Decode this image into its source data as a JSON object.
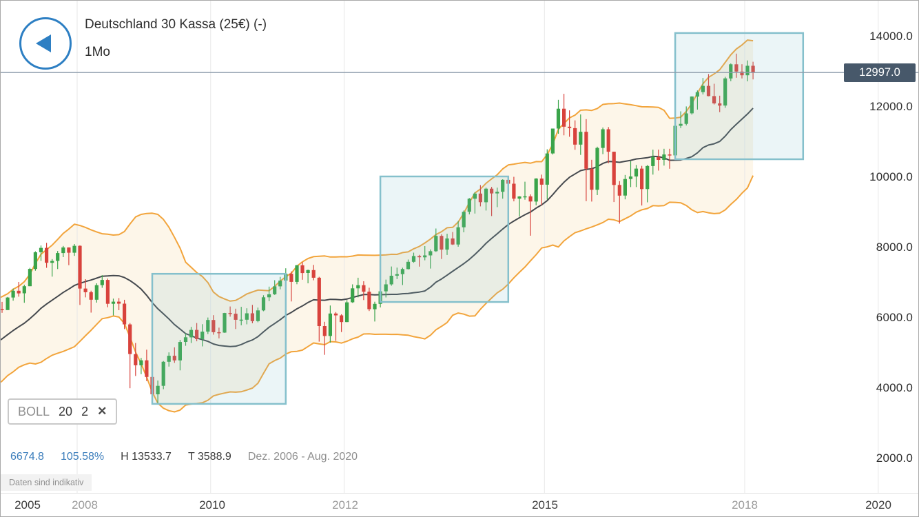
{
  "header": {
    "title": "Deutschland 30 Kassa (25€) (-)",
    "timeframe": "1Mo"
  },
  "icons": {
    "close": "✕",
    "back": "left-arrow"
  },
  "stats": {
    "change_points": "6674.8",
    "change_percent": "105.58%",
    "high": "H 13533.7",
    "low": "T 3588.9",
    "range": "Dez. 2006 - Aug. 2020"
  },
  "disclaimer": "Daten sind indikativ",
  "colors": {
    "accent_blue": "#2d7fc3",
    "stat_blue": "#3b7dbb",
    "up": "#3aa44a",
    "down": "#d8423c",
    "band_line": "#f2a43b",
    "band_fill": "#fdf6e9",
    "mid_line": "#45494e",
    "box_stroke": "#85c0cc",
    "box_fill": "rgba(133,192,204,0.16)",
    "price_line": "#8d9cab",
    "badge_bg": "#47586a",
    "grid": "#e7e7e7",
    "text_dark": "#3c3c3c",
    "text_gray": "#9b9b9b"
  },
  "chart_data": {
    "type": "candlestick",
    "title": "Deutschland 30 Kassa (25€) (-)",
    "timeframe": "1Mo",
    "x_ticks": [
      "2005",
      "2008",
      "2010",
      "2012",
      "2015",
      "2018",
      "2020"
    ],
    "y_ticks": [
      "14000.0",
      "12000.0",
      "10000.0",
      "8000.0",
      "6000.0",
      "4000.0",
      "2000.0"
    ],
    "y_range": [
      2000,
      14000
    ],
    "current_price": 12997.0,
    "current_price_label": "12997.0",
    "indicator": {
      "name": "BOLL",
      "period": 20,
      "stddev": 2
    },
    "annotations": [
      {
        "type": "rect",
        "from": "2009-02",
        "to": "2011-02",
        "price_top": 7270,
        "price_bottom": 3570
      },
      {
        "type": "rect",
        "from": "2012-07",
        "to": "2014-06",
        "price_top": 10040,
        "price_bottom": 6470
      },
      {
        "type": "rect",
        "from": "2016-12",
        "to": "2018-11",
        "price_top": 14120,
        "price_bottom": 10530
      }
    ],
    "candles": [
      [
        "2005-01",
        4256,
        4270,
        4157,
        4254
      ],
      [
        "2005-02",
        4254,
        4412,
        4203,
        4350
      ],
      [
        "2005-03",
        4350,
        4435,
        4292,
        4348
      ],
      [
        "2005-04",
        4348,
        4380,
        4157,
        4184
      ],
      [
        "2005-05",
        4184,
        4478,
        4180,
        4460
      ],
      [
        "2005-06",
        4460,
        4632,
        4444,
        4586
      ],
      [
        "2005-07",
        4586,
        4897,
        4572,
        4886
      ],
      [
        "2005-08",
        4886,
        5004,
        4762,
        4830
      ],
      [
        "2005-09",
        4830,
        5064,
        4815,
        5044
      ],
      [
        "2005-10",
        5044,
        5138,
        4762,
        4929
      ],
      [
        "2005-11",
        4929,
        5226,
        4868,
        5193
      ],
      [
        "2005-12",
        5193,
        5458,
        5166,
        5408
      ],
      [
        "2006-01",
        5408,
        5686,
        5352,
        5674
      ],
      [
        "2006-02",
        5674,
        5888,
        5582,
        5796
      ],
      [
        "2006-03",
        5796,
        6001,
        5689,
        5970
      ],
      [
        "2006-04",
        5970,
        6141,
        5871,
        6009
      ],
      [
        "2006-05",
        6009,
        6162,
        5618,
        5692
      ],
      [
        "2006-06",
        5692,
        5730,
        5243,
        5683
      ],
      [
        "2006-07",
        5683,
        5743,
        5405,
        5682
      ],
      [
        "2006-08",
        5682,
        5938,
        5603,
        5859
      ],
      [
        "2006-09",
        5859,
        6090,
        5753,
        6004
      ],
      [
        "2006-10",
        6004,
        6321,
        5950,
        6269
      ],
      [
        "2006-11",
        6269,
        6472,
        6161,
        6241
      ],
      [
        "2006-12",
        6241,
        6611,
        6241,
        6597
      ],
      [
        "2007-01",
        6597,
        6850,
        6505,
        6789
      ],
      [
        "2007-02",
        6789,
        7040,
        6620,
        6715
      ],
      [
        "2007-03",
        6715,
        6960,
        6448,
        6917
      ],
      [
        "2007-04",
        6917,
        7440,
        6917,
        7409
      ],
      [
        "2007-05",
        7409,
        7910,
        7358,
        7883
      ],
      [
        "2007-06",
        7883,
        8076,
        7638,
        8007
      ],
      [
        "2007-07",
        8007,
        8151,
        7441,
        7584
      ],
      [
        "2007-08",
        7584,
        7690,
        7190,
        7638
      ],
      [
        "2007-09",
        7638,
        7920,
        7405,
        7861
      ],
      [
        "2007-10",
        7861,
        8063,
        7745,
        8019
      ],
      [
        "2007-11",
        8019,
        8024,
        7515,
        7870
      ],
      [
        "2007-12",
        7870,
        8117,
        7780,
        8067
      ],
      [
        "2008-01",
        8067,
        8081,
        6384,
        6851
      ],
      [
        "2008-02",
        6851,
        7117,
        6600,
        6748
      ],
      [
        "2008-03",
        6748,
        6790,
        6167,
        6535
      ],
      [
        "2008-04",
        6535,
        7000,
        6450,
        6948
      ],
      [
        "2008-05",
        6948,
        7231,
        6873,
        7096
      ],
      [
        "2008-06",
        7096,
        7135,
        6319,
        6418
      ],
      [
        "2008-07",
        6418,
        6564,
        6089,
        6479
      ],
      [
        "2008-08",
        6479,
        6581,
        6236,
        6422
      ],
      [
        "2008-09",
        6422,
        6531,
        5698,
        5831
      ],
      [
        "2008-10",
        5831,
        5871,
        4015,
        4987
      ],
      [
        "2008-11",
        4987,
        5302,
        4364,
        4669
      ],
      [
        "2008-12",
        4669,
        4879,
        4416,
        4810
      ],
      [
        "2009-01",
        4810,
        5111,
        4217,
        4338
      ],
      [
        "2009-02",
        4338,
        4560,
        3822,
        3843
      ],
      [
        "2009-03",
        3843,
        4236,
        3588.9,
        4085
      ],
      [
        "2009-04",
        4085,
        4790,
        3989,
        4769
      ],
      [
        "2009-05",
        4769,
        5035,
        4631,
        4940
      ],
      [
        "2009-06",
        4940,
        5178,
        4738,
        4809
      ],
      [
        "2009-07",
        4809,
        5390,
        4524,
        5332
      ],
      [
        "2009-08",
        5332,
        5576,
        5223,
        5464
      ],
      [
        "2009-09",
        5464,
        5761,
        5301,
        5675
      ],
      [
        "2009-10",
        5675,
        5870,
        5351,
        5414
      ],
      [
        "2009-11",
        5414,
        5838,
        5205,
        5626
      ],
      [
        "2009-12",
        5626,
        6027,
        5556,
        5957
      ],
      [
        "2010-01",
        5957,
        6094,
        5540,
        5609
      ],
      [
        "2010-02",
        5609,
        5739,
        5433,
        5598
      ],
      [
        "2010-03",
        5598,
        6160,
        5590,
        6154
      ],
      [
        "2010-04",
        6154,
        6341,
        6050,
        6136
      ],
      [
        "2010-05",
        6136,
        6278,
        5700,
        5964
      ],
      [
        "2010-06",
        5964,
        6331,
        5806,
        5966
      ],
      [
        "2010-07",
        5966,
        6291,
        5834,
        6148
      ],
      [
        "2010-08",
        6148,
        6387,
        5862,
        5925
      ],
      [
        "2010-09",
        5925,
        6309,
        5893,
        6229
      ],
      [
        "2010-10",
        6229,
        6660,
        6206,
        6601
      ],
      [
        "2010-11",
        6601,
        6905,
        6492,
        6688
      ],
      [
        "2010-12",
        6688,
        7088,
        6671,
        6914
      ],
      [
        "2011-01",
        6914,
        7185,
        6830,
        7077
      ],
      [
        "2011-02",
        7077,
        7427,
        7051,
        7272
      ],
      [
        "2011-03",
        7272,
        7340,
        6484,
        7041
      ],
      [
        "2011-04",
        7041,
        7519,
        6974,
        7514
      ],
      [
        "2011-05",
        7514,
        7601,
        7102,
        7293
      ],
      [
        "2011-06",
        7293,
        7390,
        7000,
        7376
      ],
      [
        "2011-07",
        7376,
        7524,
        7087,
        7159
      ],
      [
        "2011-08",
        7159,
        7184,
        5341,
        5785
      ],
      [
        "2011-09",
        5785,
        5906,
        4966,
        5502
      ],
      [
        "2011-10",
        5502,
        6368,
        5311,
        6141
      ],
      [
        "2011-11",
        6141,
        6182,
        5362,
        6088
      ],
      [
        "2011-12",
        6088,
        6120,
        5613,
        5898
      ],
      [
        "2012-01",
        5898,
        6523,
        5896,
        6459
      ],
      [
        "2012-02",
        6459,
        6971,
        6444,
        6856
      ],
      [
        "2012-03",
        6856,
        7158,
        6600,
        6947
      ],
      [
        "2012-04",
        6947,
        7058,
        6523,
        6761
      ],
      [
        "2012-05",
        6761,
        6875,
        6212,
        6264
      ],
      [
        "2012-06",
        6264,
        6477,
        5914,
        6416
      ],
      [
        "2012-07",
        6416,
        6813,
        6313,
        6772
      ],
      [
        "2012-08",
        6772,
        7106,
        6599,
        6971
      ],
      [
        "2012-09",
        6971,
        7478,
        6932,
        7216
      ],
      [
        "2012-10",
        7216,
        7447,
        7120,
        7260
      ],
      [
        "2012-11",
        7260,
        7444,
        6950,
        7405
      ],
      [
        "2012-12",
        7405,
        7676,
        7395,
        7612
      ],
      [
        "2013-01",
        7612,
        7872,
        7585,
        7776
      ],
      [
        "2013-02",
        7776,
        7810,
        7475,
        7741
      ],
      [
        "2013-03",
        7741,
        8058,
        7655,
        7795
      ],
      [
        "2013-04",
        7795,
        7963,
        7419,
        7914
      ],
      [
        "2013-05",
        7914,
        8558,
        7893,
        8349
      ],
      [
        "2013-06",
        8349,
        8395,
        7692,
        7959
      ],
      [
        "2013-07",
        7959,
        8410,
        7806,
        8276
      ],
      [
        "2013-08",
        8276,
        8458,
        8090,
        8103
      ],
      [
        "2013-09",
        8103,
        8770,
        8042,
        8594
      ],
      [
        "2013-10",
        8594,
        9070,
        8450,
        9034
      ],
      [
        "2013-11",
        9034,
        9425,
        8960,
        9405
      ],
      [
        "2013-12",
        9405,
        9594,
        8984,
        9552
      ],
      [
        "2014-01",
        9552,
        9794,
        9188,
        9306
      ],
      [
        "2014-02",
        9306,
        9721,
        9070,
        9692
      ],
      [
        "2014-03",
        9692,
        9743,
        8913,
        9556
      ],
      [
        "2014-04",
        9556,
        9721,
        9166,
        9603
      ],
      [
        "2014-05",
        9603,
        9960,
        9407,
        9943
      ],
      [
        "2014-06",
        9943,
        10051,
        9750,
        9833
      ],
      [
        "2014-07",
        9833,
        10029,
        9332,
        9407
      ],
      [
        "2014-08",
        9407,
        9480,
        8903,
        9470
      ],
      [
        "2014-09",
        9470,
        9891,
        9378,
        9474
      ],
      [
        "2014-10",
        9474,
        9529,
        8355,
        9327
      ],
      [
        "2014-11",
        9327,
        9991,
        9219,
        9981
      ],
      [
        "2014-12",
        9981,
        10093,
        9220,
        9806
      ],
      [
        "2015-01",
        9806,
        10811,
        9383,
        10694
      ],
      [
        "2015-02",
        10694,
        11402,
        10664,
        11402
      ],
      [
        "2015-03",
        11402,
        12219,
        11254,
        11966
      ],
      [
        "2015-04",
        11966,
        12391,
        11209,
        11454
      ],
      [
        "2015-05",
        11454,
        11920,
        11168,
        11414
      ],
      [
        "2015-06",
        11414,
        11636,
        10799,
        10945
      ],
      [
        "2015-07",
        10945,
        11803,
        10653,
        11309
      ],
      [
        "2015-08",
        11309,
        11670,
        9338,
        10259
      ],
      [
        "2015-09",
        10259,
        10513,
        9325,
        9660
      ],
      [
        "2015-10",
        9660,
        10887,
        9509,
        10850
      ],
      [
        "2015-11",
        10850,
        11431,
        10675,
        11382
      ],
      [
        "2015-12",
        11382,
        11445,
        10415,
        10743
      ],
      [
        "2016-01",
        10743,
        10743,
        9311,
        9798
      ],
      [
        "2016-02",
        9798,
        9907,
        8699,
        9495
      ],
      [
        "2016-03",
        9495,
        10083,
        9388,
        9966
      ],
      [
        "2016-04",
        9966,
        10474,
        9738,
        10039
      ],
      [
        "2016-05",
        10039,
        10365,
        9737,
        10263
      ],
      [
        "2016-06",
        10263,
        10341,
        9214,
        9680
      ],
      [
        "2016-07",
        9680,
        10365,
        9304,
        10337
      ],
      [
        "2016-08",
        10337,
        10802,
        10092,
        10593
      ],
      [
        "2016-09",
        10593,
        10803,
        10205,
        10511
      ],
      [
        "2016-10",
        10511,
        10828,
        10349,
        10665
      ],
      [
        "2016-11",
        10665,
        10827,
        10259,
        10640
      ],
      [
        "2016-12",
        10640,
        11481,
        10604,
        11481
      ],
      [
        "2017-01",
        11481,
        11893,
        11415,
        11535
      ],
      [
        "2017-02",
        11535,
        12031,
        11493,
        11834
      ],
      [
        "2017-03",
        11834,
        12320,
        11798,
        12313
      ],
      [
        "2017-04",
        12313,
        12486,
        11941,
        12438
      ],
      [
        "2017-05",
        12438,
        12842,
        12370,
        12615
      ],
      [
        "2017-06",
        12615,
        12952,
        12319,
        12325
      ],
      [
        "2017-07",
        12325,
        12676,
        12086,
        12118
      ],
      [
        "2017-08",
        12118,
        12337,
        11869,
        12056
      ],
      [
        "2017-09",
        12056,
        12872,
        11993,
        12829
      ],
      [
        "2017-10",
        12829,
        13255,
        12750,
        13230
      ],
      [
        "2017-11",
        13230,
        13533.7,
        12848,
        13024
      ],
      [
        "2017-12",
        13024,
        13232,
        12828,
        12918
      ],
      [
        "2018-01",
        12918,
        13340,
        12745,
        13189
      ],
      [
        "2018-02",
        13189,
        13301,
        12800,
        12997
      ]
    ]
  }
}
